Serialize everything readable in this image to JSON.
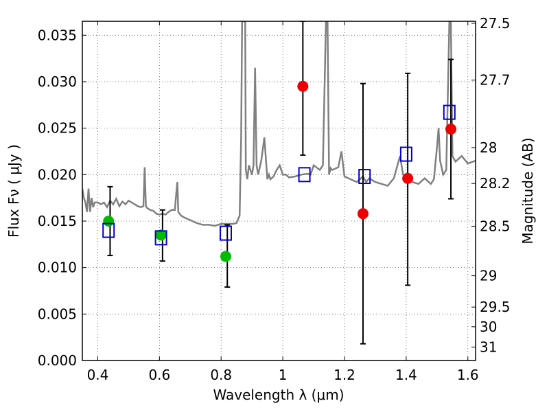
{
  "chart_data": {
    "type": "scatter",
    "xlabel": "Wavelength  λ (μm)",
    "ylabel": "Flux  Fν  ( μJy )",
    "y2label": "Magnitude (AB)",
    "xlim": [
      0.35,
      1.625
    ],
    "ylim": [
      0.0,
      0.0365
    ],
    "grid": true,
    "x_ticks": [
      {
        "value": 0.4,
        "label": "0.4"
      },
      {
        "value": 0.6,
        "label": "0.6"
      },
      {
        "value": 0.8,
        "label": "0.8"
      },
      {
        "value": 1.0,
        "label": "1"
      },
      {
        "value": 1.2,
        "label": "1.2"
      },
      {
        "value": 1.4,
        "label": "1.4"
      },
      {
        "value": 1.6,
        "label": "1.6"
      }
    ],
    "y_ticks": [
      {
        "value": 0.0,
        "label": "0.000"
      },
      {
        "value": 0.005,
        "label": "0.005"
      },
      {
        "value": 0.01,
        "label": "0.010"
      },
      {
        "value": 0.015,
        "label": "0.015"
      },
      {
        "value": 0.02,
        "label": "0.020"
      },
      {
        "value": 0.025,
        "label": "0.025"
      },
      {
        "value": 0.03,
        "label": "0.030"
      },
      {
        "value": 0.035,
        "label": "0.035"
      }
    ],
    "y2_ticks": [
      {
        "flux": 0.03628,
        "label": "27.5"
      },
      {
        "flux": 0.03017,
        "label": "27.7"
      },
      {
        "flux": 0.02291,
        "label": "28"
      },
      {
        "flux": 0.01905,
        "label": "28.2"
      },
      {
        "flux": 0.01445,
        "label": "28.5"
      },
      {
        "flux": 0.00912,
        "label": "29"
      },
      {
        "flux": 0.00575,
        "label": "29.5"
      },
      {
        "flux": 0.00363,
        "label": "30"
      },
      {
        "flux": 0.00145,
        "label": "31"
      }
    ],
    "colors": {
      "model_line": "#808080",
      "detection": "#00bb00",
      "upper": "#ee0000",
      "model_flux": "#0000cc",
      "errorbar": "#000000"
    },
    "model_spectrum": {
      "x": [
        0.35,
        0.355,
        0.36,
        0.365,
        0.37,
        0.375,
        0.38,
        0.385,
        0.39,
        0.4,
        0.41,
        0.42,
        0.43,
        0.44,
        0.45,
        0.46,
        0.47,
        0.48,
        0.49,
        0.5,
        0.51,
        0.52,
        0.53,
        0.54,
        0.548,
        0.552,
        0.556,
        0.56,
        0.57,
        0.58,
        0.59,
        0.6,
        0.61,
        0.62,
        0.63,
        0.64,
        0.65,
        0.655,
        0.658,
        0.661,
        0.665,
        0.67,
        0.68,
        0.7,
        0.72,
        0.74,
        0.76,
        0.78,
        0.8,
        0.82,
        0.84,
        0.85,
        0.86,
        0.865,
        0.868,
        0.87,
        0.872,
        0.875,
        0.878,
        0.88,
        0.885,
        0.89,
        0.9,
        0.905,
        0.91,
        0.915,
        0.92,
        0.93,
        0.94,
        0.95,
        0.955,
        0.96,
        0.97,
        0.98,
        0.99,
        1.0,
        1.01,
        1.02,
        1.04,
        1.06,
        1.08,
        1.09,
        1.1,
        1.12,
        1.13,
        1.14,
        1.145,
        1.15,
        1.155,
        1.16,
        1.18,
        1.19,
        1.2,
        1.22,
        1.24,
        1.26,
        1.27,
        1.28,
        1.3,
        1.32,
        1.34,
        1.36,
        1.38,
        1.39,
        1.4,
        1.42,
        1.44,
        1.46,
        1.48,
        1.49,
        1.5,
        1.505,
        1.51,
        1.52,
        1.53,
        1.54,
        1.545,
        1.55,
        1.56,
        1.58,
        1.6,
        1.625
      ],
      "y": [
        0.0185,
        0.0175,
        0.017,
        0.016,
        0.0185,
        0.016,
        0.0175,
        0.0165,
        0.017,
        0.017,
        0.0168,
        0.017,
        0.0165,
        0.0172,
        0.0168,
        0.0174,
        0.0166,
        0.0171,
        0.0168,
        0.0172,
        0.017,
        0.0168,
        0.0166,
        0.0165,
        0.0166,
        0.0208,
        0.0166,
        0.0164,
        0.0162,
        0.0161,
        0.0158,
        0.0157,
        0.0158,
        0.0157,
        0.016,
        0.0162,
        0.0162,
        0.0182,
        0.0192,
        0.016,
        0.0158,
        0.0156,
        0.0154,
        0.0151,
        0.0148,
        0.0146,
        0.0146,
        0.0145,
        0.0147,
        0.0147,
        0.0147,
        0.0148,
        0.0156,
        0.024,
        0.0365,
        0.0365,
        0.0365,
        0.0365,
        0.0365,
        0.0205,
        0.0195,
        0.021,
        0.02,
        0.021,
        0.0315,
        0.021,
        0.02,
        0.0215,
        0.024,
        0.0195,
        0.02,
        0.0195,
        0.0198,
        0.0205,
        0.021,
        0.02,
        0.02,
        0.0197,
        0.0198,
        0.02,
        0.0201,
        0.02,
        0.021,
        0.0205,
        0.021,
        0.0365,
        0.0365,
        0.02,
        0.0207,
        0.0205,
        0.0208,
        0.0225,
        0.0198,
        0.0195,
        0.0192,
        0.0198,
        0.0192,
        0.0196,
        0.0192,
        0.019,
        0.0188,
        0.0196,
        0.022,
        0.02,
        0.0198,
        0.0192,
        0.019,
        0.0196,
        0.019,
        0.0195,
        0.023,
        0.025,
        0.0215,
        0.02,
        0.0205,
        0.0365,
        0.0365,
        0.022,
        0.0214,
        0.022,
        0.0212,
        0.0215
      ]
    },
    "series": [
      {
        "marker": "circle",
        "color": "#00bb00",
        "points": [
          [
            0.435,
            0.015
          ],
          [
            0.605,
            0.0135
          ],
          [
            0.815,
            0.0112
          ]
        ]
      },
      {
        "marker": "circle",
        "color": "#ee0000",
        "points": [
          [
            1.065,
            0.0295
          ],
          [
            1.26,
            0.0158
          ],
          [
            1.405,
            0.0196
          ],
          [
            1.545,
            0.0249
          ]
        ]
      },
      {
        "marker": "open-square",
        "color": "#0000cc",
        "points": [
          [
            0.435,
            0.014
          ],
          [
            0.605,
            0.0132
          ],
          [
            0.815,
            0.0137
          ],
          [
            1.07,
            0.02
          ],
          [
            1.265,
            0.0198
          ],
          [
            1.4,
            0.0222
          ],
          [
            1.54,
            0.0267
          ]
        ]
      }
    ],
    "error_bars": [
      {
        "x": 0.44,
        "low": 0.0113,
        "high": 0.0187
      },
      {
        "x": 0.61,
        "low": 0.0107,
        "high": 0.0162
      },
      {
        "x": 0.82,
        "low": 0.0079,
        "high": 0.0146
      },
      {
        "x": 1.065,
        "low": 0.0221,
        "high": 0.0365
      },
      {
        "x": 1.26,
        "low": 0.0018,
        "high": 0.0298
      },
      {
        "x": 1.405,
        "low": 0.0081,
        "high": 0.0309
      },
      {
        "x": 1.545,
        "low": 0.0174,
        "high": 0.0324
      }
    ]
  }
}
